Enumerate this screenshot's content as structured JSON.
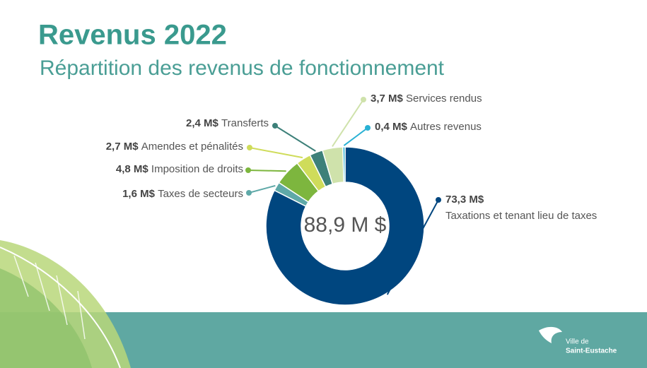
{
  "chart_data": {
    "type": "donut",
    "title": "Revenus 2022",
    "subtitle": "Répartition des revenus de fonctionnement",
    "center_label": "88,9 M $",
    "categories": [
      "Taxations et tenant lieu de taxes",
      "Taxes de secteurs",
      "Imposition de droits",
      "Amendes et pénalités",
      "Transferts",
      "Services rendus",
      "Autres revenus"
    ],
    "values": [
      73.3,
      1.6,
      4.8,
      2.7,
      2.4,
      3.7,
      0.4
    ],
    "value_labels": [
      "73,3 M$",
      "1,6 M$",
      "4,8 M$",
      "2,7 M$",
      "2,4 M$",
      "3,7 M$",
      "0,4 M$"
    ],
    "colors": [
      "#00467f",
      "#5fa9a8",
      "#7db63e",
      "#cfdc5a",
      "#3d8079",
      "#cfe2ab",
      "#29b1d4"
    ]
  },
  "logo": {
    "line1": "Ville de",
    "line2": "Saint-Eustache"
  }
}
